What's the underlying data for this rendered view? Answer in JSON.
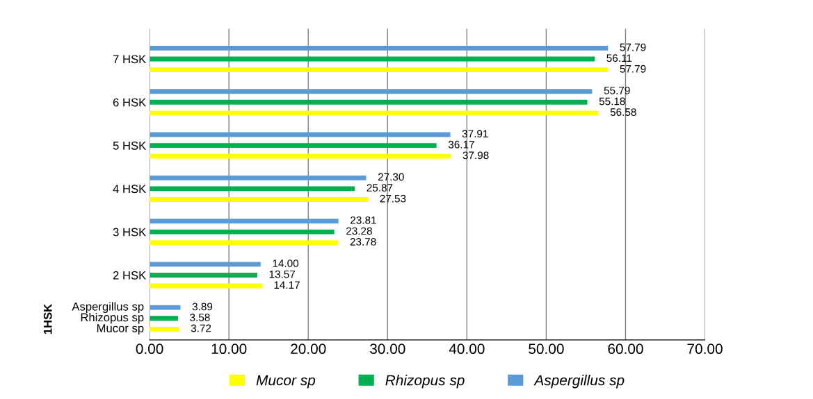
{
  "chart_data": {
    "type": "bar",
    "orientation": "horizontal",
    "categories": [
      "7 HSK",
      "6 HSK",
      "5 HSK",
      "4 HSK",
      "3 HSK",
      "2 HSK",
      null
    ],
    "annotations": [
      "1HSK"
    ],
    "series": [
      {
        "name": "Mucor sp",
        "color": "#ffff00",
        "values": [
          57.79,
          56.58,
          37.98,
          27.53,
          23.78,
          14.17,
          3.72
        ],
        "value_labels": [
          "57.79",
          "56.58",
          "37.98",
          "27.53",
          "23.78",
          "14.17",
          "3.72"
        ]
      },
      {
        "name": "Rhizopus sp",
        "color": "#00b050",
        "values": [
          56.11,
          55.18,
          36.17,
          25.87,
          23.28,
          13.57,
          3.58
        ],
        "value_labels": [
          "56.11",
          "55.18",
          "36.17",
          "25.87",
          "23.28",
          "13.57",
          "3.58"
        ]
      },
      {
        "name": "Aspergillus sp",
        "color": "#5b9bd5",
        "values": [
          57.79,
          55.79,
          37.91,
          27.3,
          23.81,
          14.0,
          3.89
        ],
        "value_labels": [
          "57.79",
          "55.79",
          "37.91",
          "27.30",
          "23.81",
          "14.00",
          "3.89"
        ]
      }
    ],
    "xlim": [
      0,
      70
    ],
    "xticks": [
      {
        "value": 0,
        "label": "0.00"
      },
      {
        "value": 10,
        "label": "10.00"
      },
      {
        "value": 20,
        "label": "20.00"
      },
      {
        "value": 30,
        "label": "30.00"
      },
      {
        "value": 40,
        "label": "40.00"
      },
      {
        "value": 50,
        "label": "50.00"
      },
      {
        "value": 60,
        "label": "60.00"
      },
      {
        "value": 70,
        "label": "70.00"
      }
    ],
    "grid": "x",
    "legend": "bottom"
  }
}
